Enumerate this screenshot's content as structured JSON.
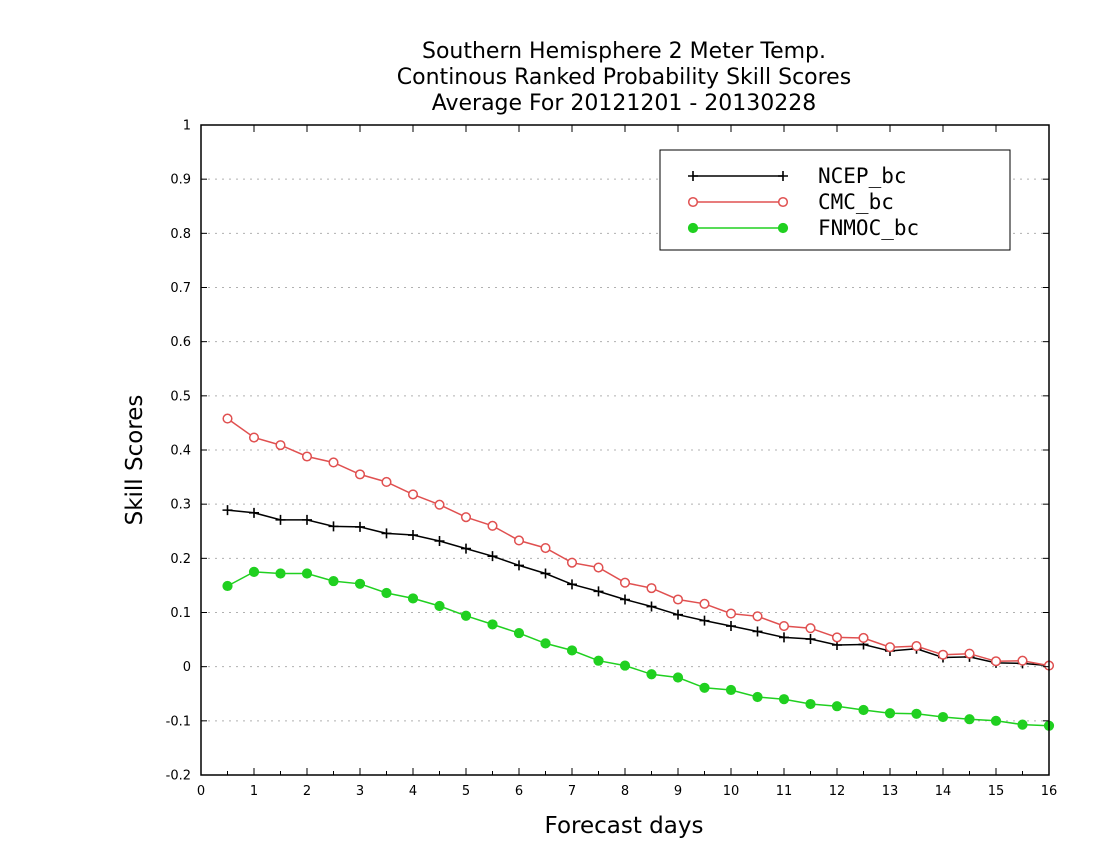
{
  "chart_data": {
    "type": "line",
    "title_lines": [
      "Southern Hemisphere 2 Meter Temp.",
      "Continous Ranked Probability Skill Scores",
      "Average For 20121201 - 20130228"
    ],
    "xlabel": "Forecast days",
    "ylabel": "Skill Scores",
    "xlim": [
      0,
      16
    ],
    "ylim": [
      -0.2,
      1
    ],
    "x_ticks": [
      "0",
      "1",
      "2",
      "3",
      "4",
      "5",
      "6",
      "7",
      "8",
      "9",
      "10",
      "11",
      "12",
      "13",
      "14",
      "15",
      "16"
    ],
    "y_ticks": [
      "-0.2",
      "-0.1",
      "0",
      "0.1",
      "0.2",
      "0.3",
      "0.4",
      "0.5",
      "0.6",
      "0.7",
      "0.8",
      "0.9",
      "1"
    ],
    "grid": "horizontal dotted",
    "legend_position": "top-right",
    "x": [
      0.5,
      1,
      1.5,
      2,
      2.5,
      3,
      3.5,
      4,
      4.5,
      5,
      5.5,
      6,
      6.5,
      7,
      7.5,
      8,
      8.5,
      9,
      9.5,
      10,
      10.5,
      11,
      11.5,
      12,
      12.5,
      13,
      13.5,
      14,
      14.5,
      15,
      15.5,
      16
    ],
    "series": [
      {
        "name": "NCEP_bc",
        "color": "#000000",
        "marker": "plus",
        "values": [
          0.289,
          0.284,
          0.271,
          0.271,
          0.259,
          0.258,
          0.246,
          0.243,
          0.232,
          0.218,
          0.204,
          0.187,
          0.172,
          0.152,
          0.139,
          0.124,
          0.111,
          0.096,
          0.085,
          0.075,
          0.065,
          0.054,
          0.051,
          0.04,
          0.041,
          0.029,
          0.033,
          0.017,
          0.018,
          0.007,
          0.006,
          0.002
        ]
      },
      {
        "name": "CMC_bc",
        "color": "#e05050",
        "marker": "open-circle",
        "values": [
          0.458,
          0.423,
          0.409,
          0.388,
          0.377,
          0.355,
          0.341,
          0.318,
          0.299,
          0.276,
          0.26,
          0.233,
          0.219,
          0.192,
          0.183,
          0.155,
          0.145,
          0.124,
          0.116,
          0.098,
          0.093,
          0.075,
          0.071,
          0.054,
          0.053,
          0.036,
          0.038,
          0.022,
          0.024,
          0.01,
          0.011,
          0.002
        ]
      },
      {
        "name": "FNMOC_bc",
        "color": "#20d020",
        "marker": "filled-circle",
        "values": [
          0.149,
          0.175,
          0.172,
          0.172,
          0.158,
          0.153,
          0.136,
          0.126,
          0.112,
          0.094,
          0.078,
          0.062,
          0.043,
          0.03,
          0.011,
          0.002,
          -0.014,
          -0.02,
          -0.039,
          -0.043,
          -0.056,
          -0.06,
          -0.069,
          -0.073,
          -0.08,
          -0.086,
          -0.087,
          -0.093,
          -0.097,
          -0.1,
          -0.107,
          -0.109
        ]
      }
    ]
  }
}
